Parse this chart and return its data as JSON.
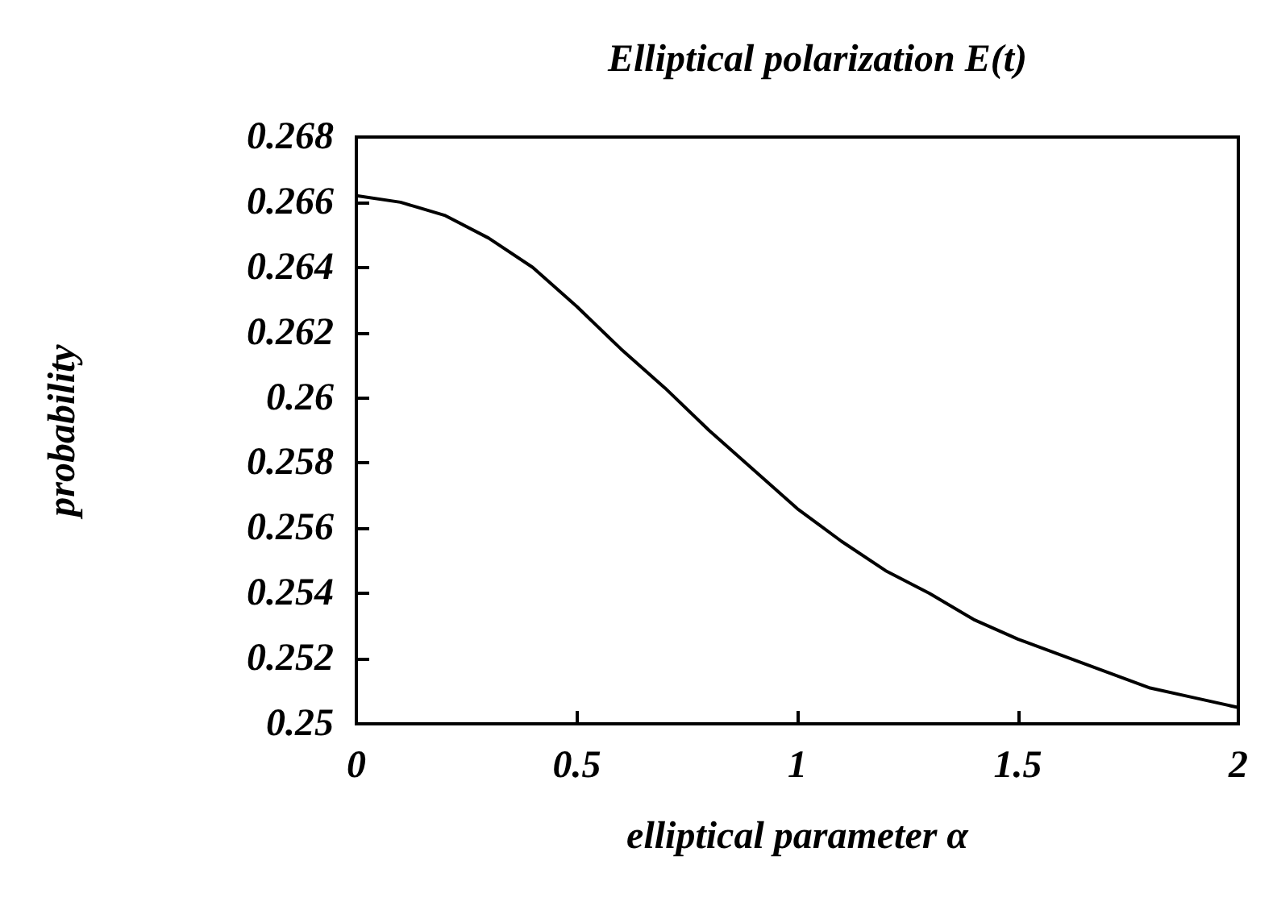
{
  "chart_data": {
    "type": "line",
    "title": "Elliptical polarization E(t)",
    "xlabel": "elliptical parameter α",
    "ylabel": "probability",
    "x": [
      0,
      0.1,
      0.2,
      0.3,
      0.4,
      0.5,
      0.6,
      0.7,
      0.8,
      0.9,
      1.0,
      1.1,
      1.2,
      1.3,
      1.4,
      1.5,
      1.6,
      1.7,
      1.8,
      1.9,
      2.0
    ],
    "series": [
      {
        "color": "#000000",
        "values": [
          0.2662,
          0.266,
          0.2656,
          0.2649,
          0.264,
          0.2628,
          0.2615,
          0.2603,
          0.259,
          0.2578,
          0.2566,
          0.2556,
          0.2547,
          0.254,
          0.2532,
          0.2526,
          0.2521,
          0.2516,
          0.2511,
          0.2508,
          0.2505
        ]
      }
    ],
    "xlim": [
      0,
      2
    ],
    "xticks": [
      0,
      0.5,
      1,
      1.5,
      2
    ],
    "ylim": [
      0.25,
      0.268
    ],
    "yticks": [
      0.25,
      0.252,
      0.254,
      0.256,
      0.258,
      0.26,
      0.262,
      0.264,
      0.266,
      0.268
    ],
    "grid": false,
    "marker": "none",
    "line_style": "solid"
  }
}
